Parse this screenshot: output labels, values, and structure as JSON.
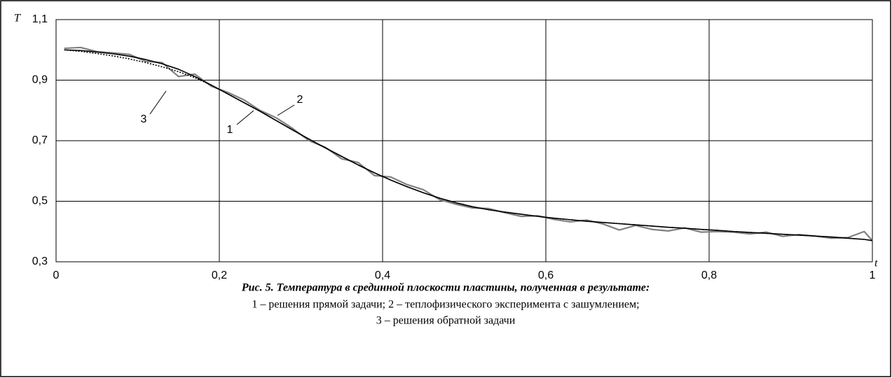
{
  "chart_data": {
    "type": "line",
    "y_label": "T",
    "x_label": "t",
    "caption": [
      "Рис. 5. Температура в срединной плоскости пластины, полученная в результате:",
      "1 – решения прямой задачи; 2 – теплофизического эксперимента с зашумлением;",
      "3 – решения обратной задачи"
    ],
    "annotations": [
      "1",
      "2",
      "3"
    ],
    "xlim": [
      0,
      1
    ],
    "ylim": [
      0.3,
      1.1
    ],
    "xticks": [
      0,
      {
        "value": 0.2,
        "label": "0,2"
      },
      {
        "value": 0.4,
        "label": "0,4"
      },
      {
        "value": 0.6,
        "label": "0,6"
      },
      {
        "value": 0.8,
        "label": "0,8"
      },
      1
    ],
    "yticks": [
      {
        "value": 0.3,
        "label": "0,3"
      },
      {
        "value": 0.5,
        "label": "0,5"
      },
      {
        "value": 0.7,
        "label": "0,7"
      },
      {
        "value": 0.9,
        "label": "0,9"
      },
      {
        "value": 1.1,
        "label": "1,1"
      }
    ],
    "grid": true,
    "x": [
      0.01,
      0.03,
      0.05,
      0.07,
      0.09,
      0.11,
      0.13,
      0.15,
      0.17,
      0.19,
      0.21,
      0.23,
      0.25,
      0.27,
      0.29,
      0.31,
      0.33,
      0.35,
      0.37,
      0.39,
      0.41,
      0.43,
      0.45,
      0.47,
      0.49,
      0.51,
      0.53,
      0.55,
      0.57,
      0.59,
      0.61,
      0.63,
      0.65,
      0.67,
      0.69,
      0.71,
      0.73,
      0.75,
      0.77,
      0.79,
      0.81,
      0.83,
      0.85,
      0.87,
      0.89,
      0.91,
      0.93,
      0.95,
      0.97,
      0.99,
      1.0
    ],
    "series": [
      {
        "name": "1",
        "color": "#000000",
        "line_style": "solid",
        "values": [
          1.0,
          0.998,
          0.993,
          0.987,
          0.979,
          0.968,
          0.954,
          0.936,
          0.912,
          0.884,
          0.855,
          0.826,
          0.797,
          0.766,
          0.735,
          0.705,
          0.676,
          0.648,
          0.62,
          0.594,
          0.57,
          0.548,
          0.528,
          0.51,
          0.495,
          0.482,
          0.472,
          0.464,
          0.457,
          0.45,
          0.444,
          0.439,
          0.434,
          0.43,
          0.426,
          0.422,
          0.418,
          0.414,
          0.411,
          0.407,
          0.404,
          0.4,
          0.397,
          0.394,
          0.391,
          0.388,
          0.385,
          0.382,
          0.378,
          0.374,
          0.37
        ]
      },
      {
        "name": "2",
        "color": "#808080",
        "line_style": "solid",
        "values": [
          1.005,
          1.008,
          0.994,
          0.99,
          0.985,
          0.962,
          0.958,
          0.912,
          0.92,
          0.88,
          0.86,
          0.835,
          0.8,
          0.775,
          0.74,
          0.7,
          0.678,
          0.64,
          0.628,
          0.585,
          0.58,
          0.555,
          0.538,
          0.505,
          0.49,
          0.478,
          0.476,
          0.462,
          0.45,
          0.452,
          0.44,
          0.432,
          0.438,
          0.425,
          0.405,
          0.42,
          0.407,
          0.402,
          0.412,
          0.398,
          0.4,
          0.398,
          0.392,
          0.398,
          0.384,
          0.39,
          0.385,
          0.378,
          0.38,
          0.4,
          0.37
        ]
      },
      {
        "name": "3",
        "color": "#000000",
        "line_style": "dotted",
        "values": [
          1.0,
          0.995,
          0.988,
          0.98,
          0.97,
          0.958,
          0.944,
          0.928,
          0.908,
          0.884,
          0.855,
          0.826,
          0.797,
          0.766,
          0.735,
          0.705,
          0.676,
          0.648,
          0.62,
          0.594,
          0.57,
          0.548,
          0.528,
          0.51,
          0.495,
          0.482,
          0.472,
          0.464,
          0.457,
          0.45,
          0.444,
          0.439,
          0.434,
          0.43,
          0.426,
          0.422,
          0.418,
          0.414,
          0.411,
          0.407,
          0.404,
          0.4,
          0.397,
          0.394,
          0.391,
          0.388,
          0.385,
          0.382,
          0.378,
          0.374,
          0.37
        ]
      }
    ]
  }
}
